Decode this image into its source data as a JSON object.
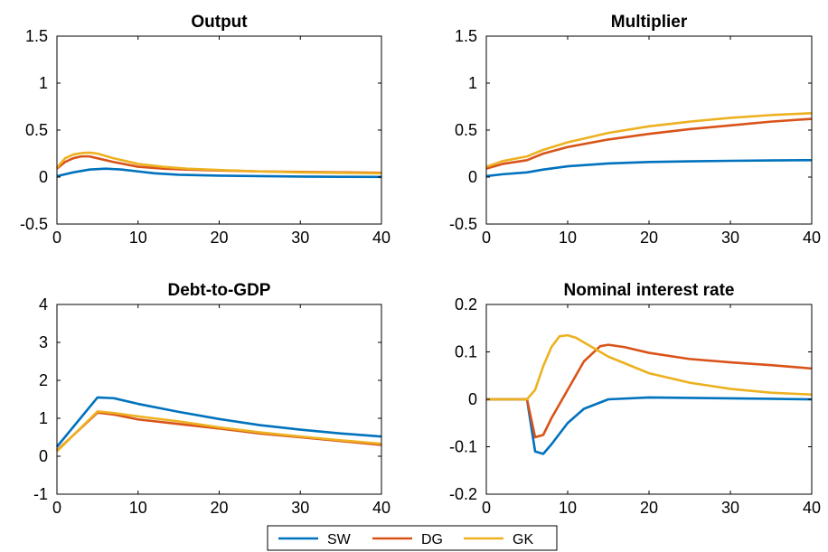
{
  "legend": {
    "entries": [
      {
        "label": "SW",
        "color": "#0072BD"
      },
      {
        "label": "DG",
        "color": "#D95319"
      },
      {
        "label": "GK",
        "color": "#EDB120"
      }
    ]
  },
  "chart_data": [
    {
      "type": "line",
      "title": "Output",
      "xlabel": "",
      "ylabel": "",
      "xlim": [
        0,
        40
      ],
      "ylim": [
        -0.5,
        1.5
      ],
      "xticks": [
        "0",
        "10",
        "20",
        "30",
        "40"
      ],
      "yticks": [
        "-0.5",
        "0",
        "0.5",
        "1",
        "1.5"
      ],
      "grid": false,
      "series": [
        {
          "name": "SW",
          "color": "#0072BD",
          "points": [
            [
              0,
              0.01
            ],
            [
              2,
              0.05
            ],
            [
              4,
              0.08
            ],
            [
              6,
              0.09
            ],
            [
              8,
              0.08
            ],
            [
              10,
              0.06
            ],
            [
              12,
              0.04
            ],
            [
              15,
              0.025
            ],
            [
              20,
              0.015
            ],
            [
              25,
              0.01
            ],
            [
              30,
              0.005
            ],
            [
              35,
              0.003
            ],
            [
              40,
              0.002
            ]
          ]
        },
        {
          "name": "DG",
          "color": "#D95319",
          "points": [
            [
              0,
              0.09
            ],
            [
              1,
              0.16
            ],
            [
              2,
              0.2
            ],
            [
              3,
              0.22
            ],
            [
              4,
              0.22
            ],
            [
              5,
              0.2
            ],
            [
              7,
              0.16
            ],
            [
              10,
              0.11
            ],
            [
              13,
              0.09
            ],
            [
              16,
              0.08
            ],
            [
              20,
              0.07
            ],
            [
              25,
              0.06
            ],
            [
              30,
              0.055
            ],
            [
              35,
              0.05
            ],
            [
              40,
              0.045
            ]
          ]
        },
        {
          "name": "GK",
          "color": "#EDB120",
          "points": [
            [
              0,
              0.1
            ],
            [
              1,
              0.2
            ],
            [
              2,
              0.24
            ],
            [
              3,
              0.255
            ],
            [
              4,
              0.26
            ],
            [
              5,
              0.25
            ],
            [
              7,
              0.2
            ],
            [
              10,
              0.14
            ],
            [
              13,
              0.11
            ],
            [
              16,
              0.09
            ],
            [
              20,
              0.075
            ],
            [
              25,
              0.06
            ],
            [
              30,
              0.05
            ],
            [
              35,
              0.045
            ],
            [
              40,
              0.04
            ]
          ]
        }
      ]
    },
    {
      "type": "line",
      "title": "Multiplier",
      "xlabel": "",
      "ylabel": "",
      "xlim": [
        0,
        40
      ],
      "ylim": [
        -0.5,
        1.5
      ],
      "xticks": [
        "0",
        "10",
        "20",
        "30",
        "40"
      ],
      "yticks": [
        "-0.5",
        "0",
        "0.5",
        "1",
        "1.5"
      ],
      "grid": false,
      "series": [
        {
          "name": "SW",
          "color": "#0072BD",
          "points": [
            [
              0,
              0.01
            ],
            [
              2,
              0.03
            ],
            [
              5,
              0.05
            ],
            [
              7,
              0.08
            ],
            [
              10,
              0.115
            ],
            [
              15,
              0.145
            ],
            [
              20,
              0.16
            ],
            [
              25,
              0.168
            ],
            [
              30,
              0.173
            ],
            [
              35,
              0.177
            ],
            [
              40,
              0.18
            ]
          ]
        },
        {
          "name": "DG",
          "color": "#D95319",
          "points": [
            [
              0,
              0.09
            ],
            [
              2,
              0.14
            ],
            [
              5,
              0.18
            ],
            [
              7,
              0.25
            ],
            [
              10,
              0.32
            ],
            [
              15,
              0.4
            ],
            [
              20,
              0.46
            ],
            [
              25,
              0.51
            ],
            [
              30,
              0.55
            ],
            [
              35,
              0.59
            ],
            [
              40,
              0.62
            ]
          ]
        },
        {
          "name": "GK",
          "color": "#EDB120",
          "points": [
            [
              0,
              0.11
            ],
            [
              2,
              0.17
            ],
            [
              5,
              0.22
            ],
            [
              7,
              0.29
            ],
            [
              10,
              0.37
            ],
            [
              15,
              0.47
            ],
            [
              20,
              0.54
            ],
            [
              25,
              0.59
            ],
            [
              30,
              0.63
            ],
            [
              35,
              0.66
            ],
            [
              40,
              0.68
            ]
          ]
        }
      ]
    },
    {
      "type": "line",
      "title": "Debt-to-GDP",
      "xlabel": "",
      "ylabel": "",
      "xlim": [
        0,
        40
      ],
      "ylim": [
        -1,
        4
      ],
      "xticks": [
        "0",
        "10",
        "20",
        "30",
        "40"
      ],
      "yticks": [
        "-1",
        "0",
        "1",
        "2",
        "3",
        "4"
      ],
      "grid": false,
      "series": [
        {
          "name": "SW",
          "color": "#0072BD",
          "points": [
            [
              0,
              0.25
            ],
            [
              5,
              1.55
            ],
            [
              7,
              1.53
            ],
            [
              10,
              1.38
            ],
            [
              15,
              1.17
            ],
            [
              20,
              0.98
            ],
            [
              25,
              0.82
            ],
            [
              30,
              0.7
            ],
            [
              35,
              0.6
            ],
            [
              40,
              0.52
            ]
          ]
        },
        {
          "name": "DG",
          "color": "#D95319",
          "points": [
            [
              0,
              0.15
            ],
            [
              5,
              1.15
            ],
            [
              7,
              1.1
            ],
            [
              10,
              0.97
            ],
            [
              15,
              0.85
            ],
            [
              20,
              0.73
            ],
            [
              25,
              0.6
            ],
            [
              30,
              0.5
            ],
            [
              35,
              0.4
            ],
            [
              40,
              0.3
            ]
          ]
        },
        {
          "name": "GK",
          "color": "#EDB120",
          "points": [
            [
              0,
              0.13
            ],
            [
              5,
              1.18
            ],
            [
              7,
              1.14
            ],
            [
              10,
              1.05
            ],
            [
              15,
              0.92
            ],
            [
              20,
              0.76
            ],
            [
              25,
              0.63
            ],
            [
              30,
              0.52
            ],
            [
              35,
              0.42
            ],
            [
              40,
              0.33
            ]
          ]
        }
      ]
    },
    {
      "type": "line",
      "title": "Nominal interest rate",
      "xlabel": "",
      "ylabel": "",
      "xlim": [
        0,
        40
      ],
      "ylim": [
        -0.2,
        0.2
      ],
      "xticks": [
        "0",
        "10",
        "20",
        "30",
        "40"
      ],
      "yticks": [
        "-0.2",
        "-0.1",
        "0",
        "0.1",
        "0.2"
      ],
      "grid": false,
      "series": [
        {
          "name": "SW",
          "color": "#0072BD",
          "points": [
            [
              0,
              0
            ],
            [
              5,
              0
            ],
            [
              6,
              -0.11
            ],
            [
              7,
              -0.115
            ],
            [
              8,
              -0.095
            ],
            [
              10,
              -0.05
            ],
            [
              12,
              -0.02
            ],
            [
              15,
              0
            ],
            [
              20,
              0.004
            ],
            [
              25,
              0.003
            ],
            [
              30,
              0.002
            ],
            [
              35,
              0.001
            ],
            [
              40,
              0
            ]
          ]
        },
        {
          "name": "DG",
          "color": "#D95319",
          "points": [
            [
              0,
              0
            ],
            [
              5,
              0
            ],
            [
              6,
              -0.08
            ],
            [
              7,
              -0.075
            ],
            [
              8,
              -0.04
            ],
            [
              10,
              0.02
            ],
            [
              12,
              0.08
            ],
            [
              14,
              0.112
            ],
            [
              15,
              0.115
            ],
            [
              17,
              0.11
            ],
            [
              20,
              0.098
            ],
            [
              25,
              0.085
            ],
            [
              30,
              0.078
            ],
            [
              35,
              0.072
            ],
            [
              40,
              0.065
            ]
          ]
        },
        {
          "name": "GK",
          "color": "#EDB120",
          "points": [
            [
              0,
              0
            ],
            [
              5,
              0
            ],
            [
              6,
              0.02
            ],
            [
              7,
              0.07
            ],
            [
              8,
              0.11
            ],
            [
              9,
              0.133
            ],
            [
              10,
              0.135
            ],
            [
              11,
              0.13
            ],
            [
              13,
              0.11
            ],
            [
              15,
              0.09
            ],
            [
              20,
              0.055
            ],
            [
              25,
              0.035
            ],
            [
              30,
              0.022
            ],
            [
              35,
              0.014
            ],
            [
              40,
              0.01
            ]
          ]
        }
      ]
    }
  ]
}
